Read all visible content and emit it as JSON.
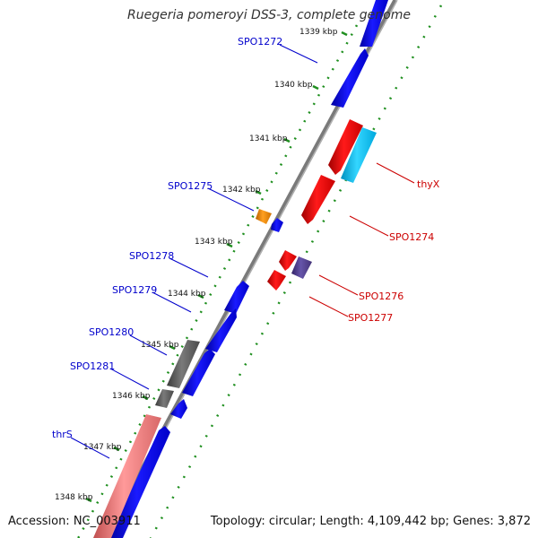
{
  "title": "Ruegeria pomeroyi DSS-3, complete genome",
  "footer": {
    "accession": "Accession: NC_003911",
    "summary": "Topology: circular; Length: 4,109,442 bp; Genes: 3,872"
  },
  "colors": {
    "forward_gene": "#0000ee",
    "reverse_gene": "#ee0000",
    "forward_label": "#0000cc",
    "reverse_label": "#cc0000",
    "backbone": "#808080",
    "tick_marks": "#228b22",
    "light_blue_gene": "#22ccff",
    "orange_gene": "#ee8800",
    "purple_gene": "#554499",
    "gray_gene": "#666666",
    "pink_gene": "#f08080"
  },
  "scale_ticks": [
    {
      "label": "1339 kbp"
    },
    {
      "label": "1340 kbp"
    },
    {
      "label": "1341 kbp"
    },
    {
      "label": "1342 kbp"
    },
    {
      "label": "1343 kbp"
    },
    {
      "label": "1344 kbp"
    },
    {
      "label": "1345 kbp"
    },
    {
      "label": "1346 kbp"
    },
    {
      "label": "1347 kbp"
    },
    {
      "label": "1348 kbp"
    }
  ],
  "forward_labels": [
    {
      "text": "SPO1272"
    },
    {
      "text": "SPO1275"
    },
    {
      "text": "SPO1278"
    },
    {
      "text": "SPO1279"
    },
    {
      "text": "SPO1280"
    },
    {
      "text": "SPO1281"
    },
    {
      "text": "thrS"
    }
  ],
  "reverse_labels": [
    {
      "text": "thyX"
    },
    {
      "text": "SPO1274"
    },
    {
      "text": "SPO1276"
    },
    {
      "text": "SPO1277"
    }
  ]
}
